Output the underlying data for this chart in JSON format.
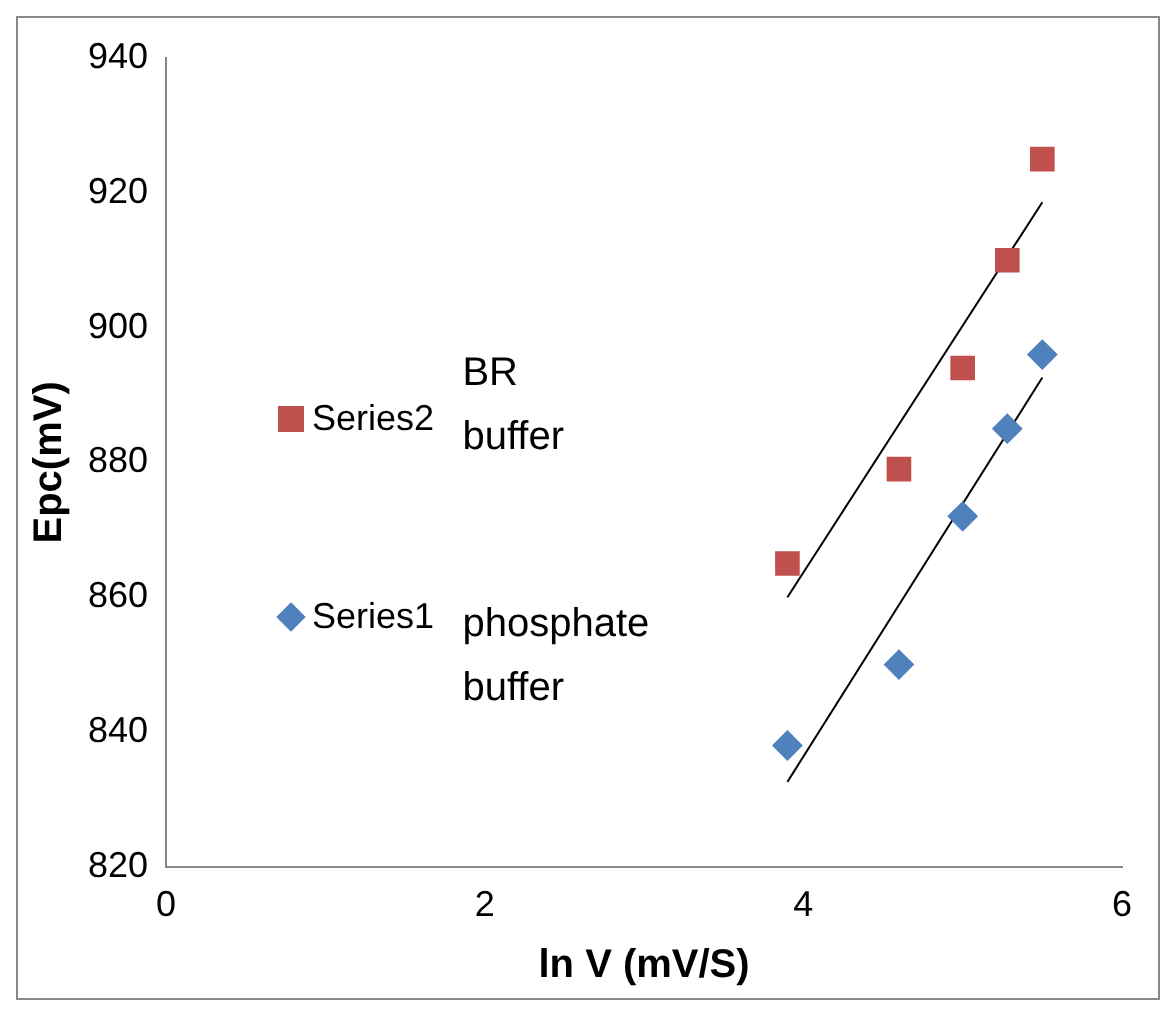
{
  "chart_data": {
    "type": "scatter",
    "xlabel": "ln V (mV/S)",
    "ylabel": "Epc(mV)",
    "xlim": [
      0,
      6
    ],
    "xticks": [
      0,
      2,
      4,
      6
    ],
    "ylim": [
      820,
      940
    ],
    "yticks": [
      820,
      840,
      860,
      880,
      900,
      920,
      940
    ],
    "grid": false,
    "legend": "left",
    "series": [
      {
        "name": "Series1",
        "color": "#4f81bd",
        "marker": "diamond",
        "x": [
          3.9,
          4.6,
          5.0,
          5.28,
          5.5
        ],
        "values": [
          838,
          850,
          872,
          885,
          896
        ]
      },
      {
        "name": "Series2",
        "color": "#c0504d",
        "marker": "square",
        "x": [
          3.9,
          4.6,
          5.0,
          5.28,
          5.5
        ],
        "values": [
          865,
          879,
          894,
          910,
          925
        ]
      },
      {
        "type": "line",
        "color": "#000000",
        "marker": "none",
        "x": [
          3.9,
          5.5
        ],
        "values": [
          832.6,
          892.6
        ]
      },
      {
        "type": "line",
        "color": "#000000",
        "marker": "none",
        "x": [
          3.9,
          5.5
        ],
        "values": [
          860,
          918.6
        ]
      }
    ],
    "annotations": [
      "BR buffer",
      "phosphate buffer"
    ]
  }
}
